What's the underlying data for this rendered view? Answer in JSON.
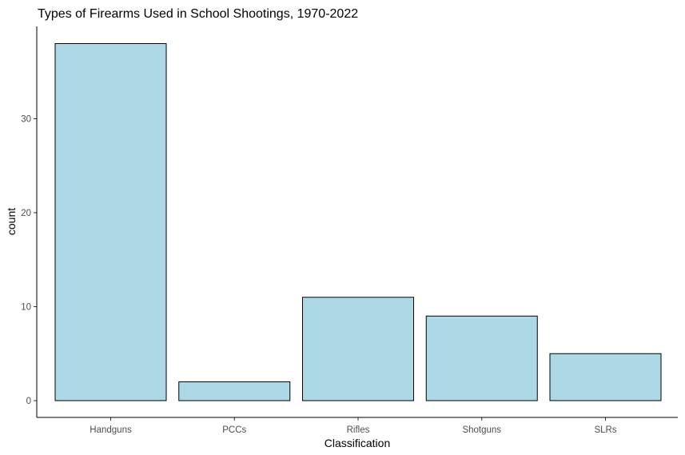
{
  "chart_data": {
    "type": "bar",
    "title": "Types of Firearms Used in School Shootings, 1970-2022",
    "xlabel": "Classification",
    "ylabel": "count",
    "categories": [
      "Handguns",
      "PCCs",
      "Rifles",
      "Shotguns",
      "SLRs"
    ],
    "values": [
      38,
      2,
      11,
      9,
      5
    ],
    "ylim": [
      0,
      40
    ],
    "yticks": [
      0,
      10,
      20,
      30
    ],
    "grid": false,
    "legend": "none",
    "colors": {
      "bar_fill": "#add8e6",
      "bar_stroke": "#000000",
      "axis": "#000000"
    }
  }
}
